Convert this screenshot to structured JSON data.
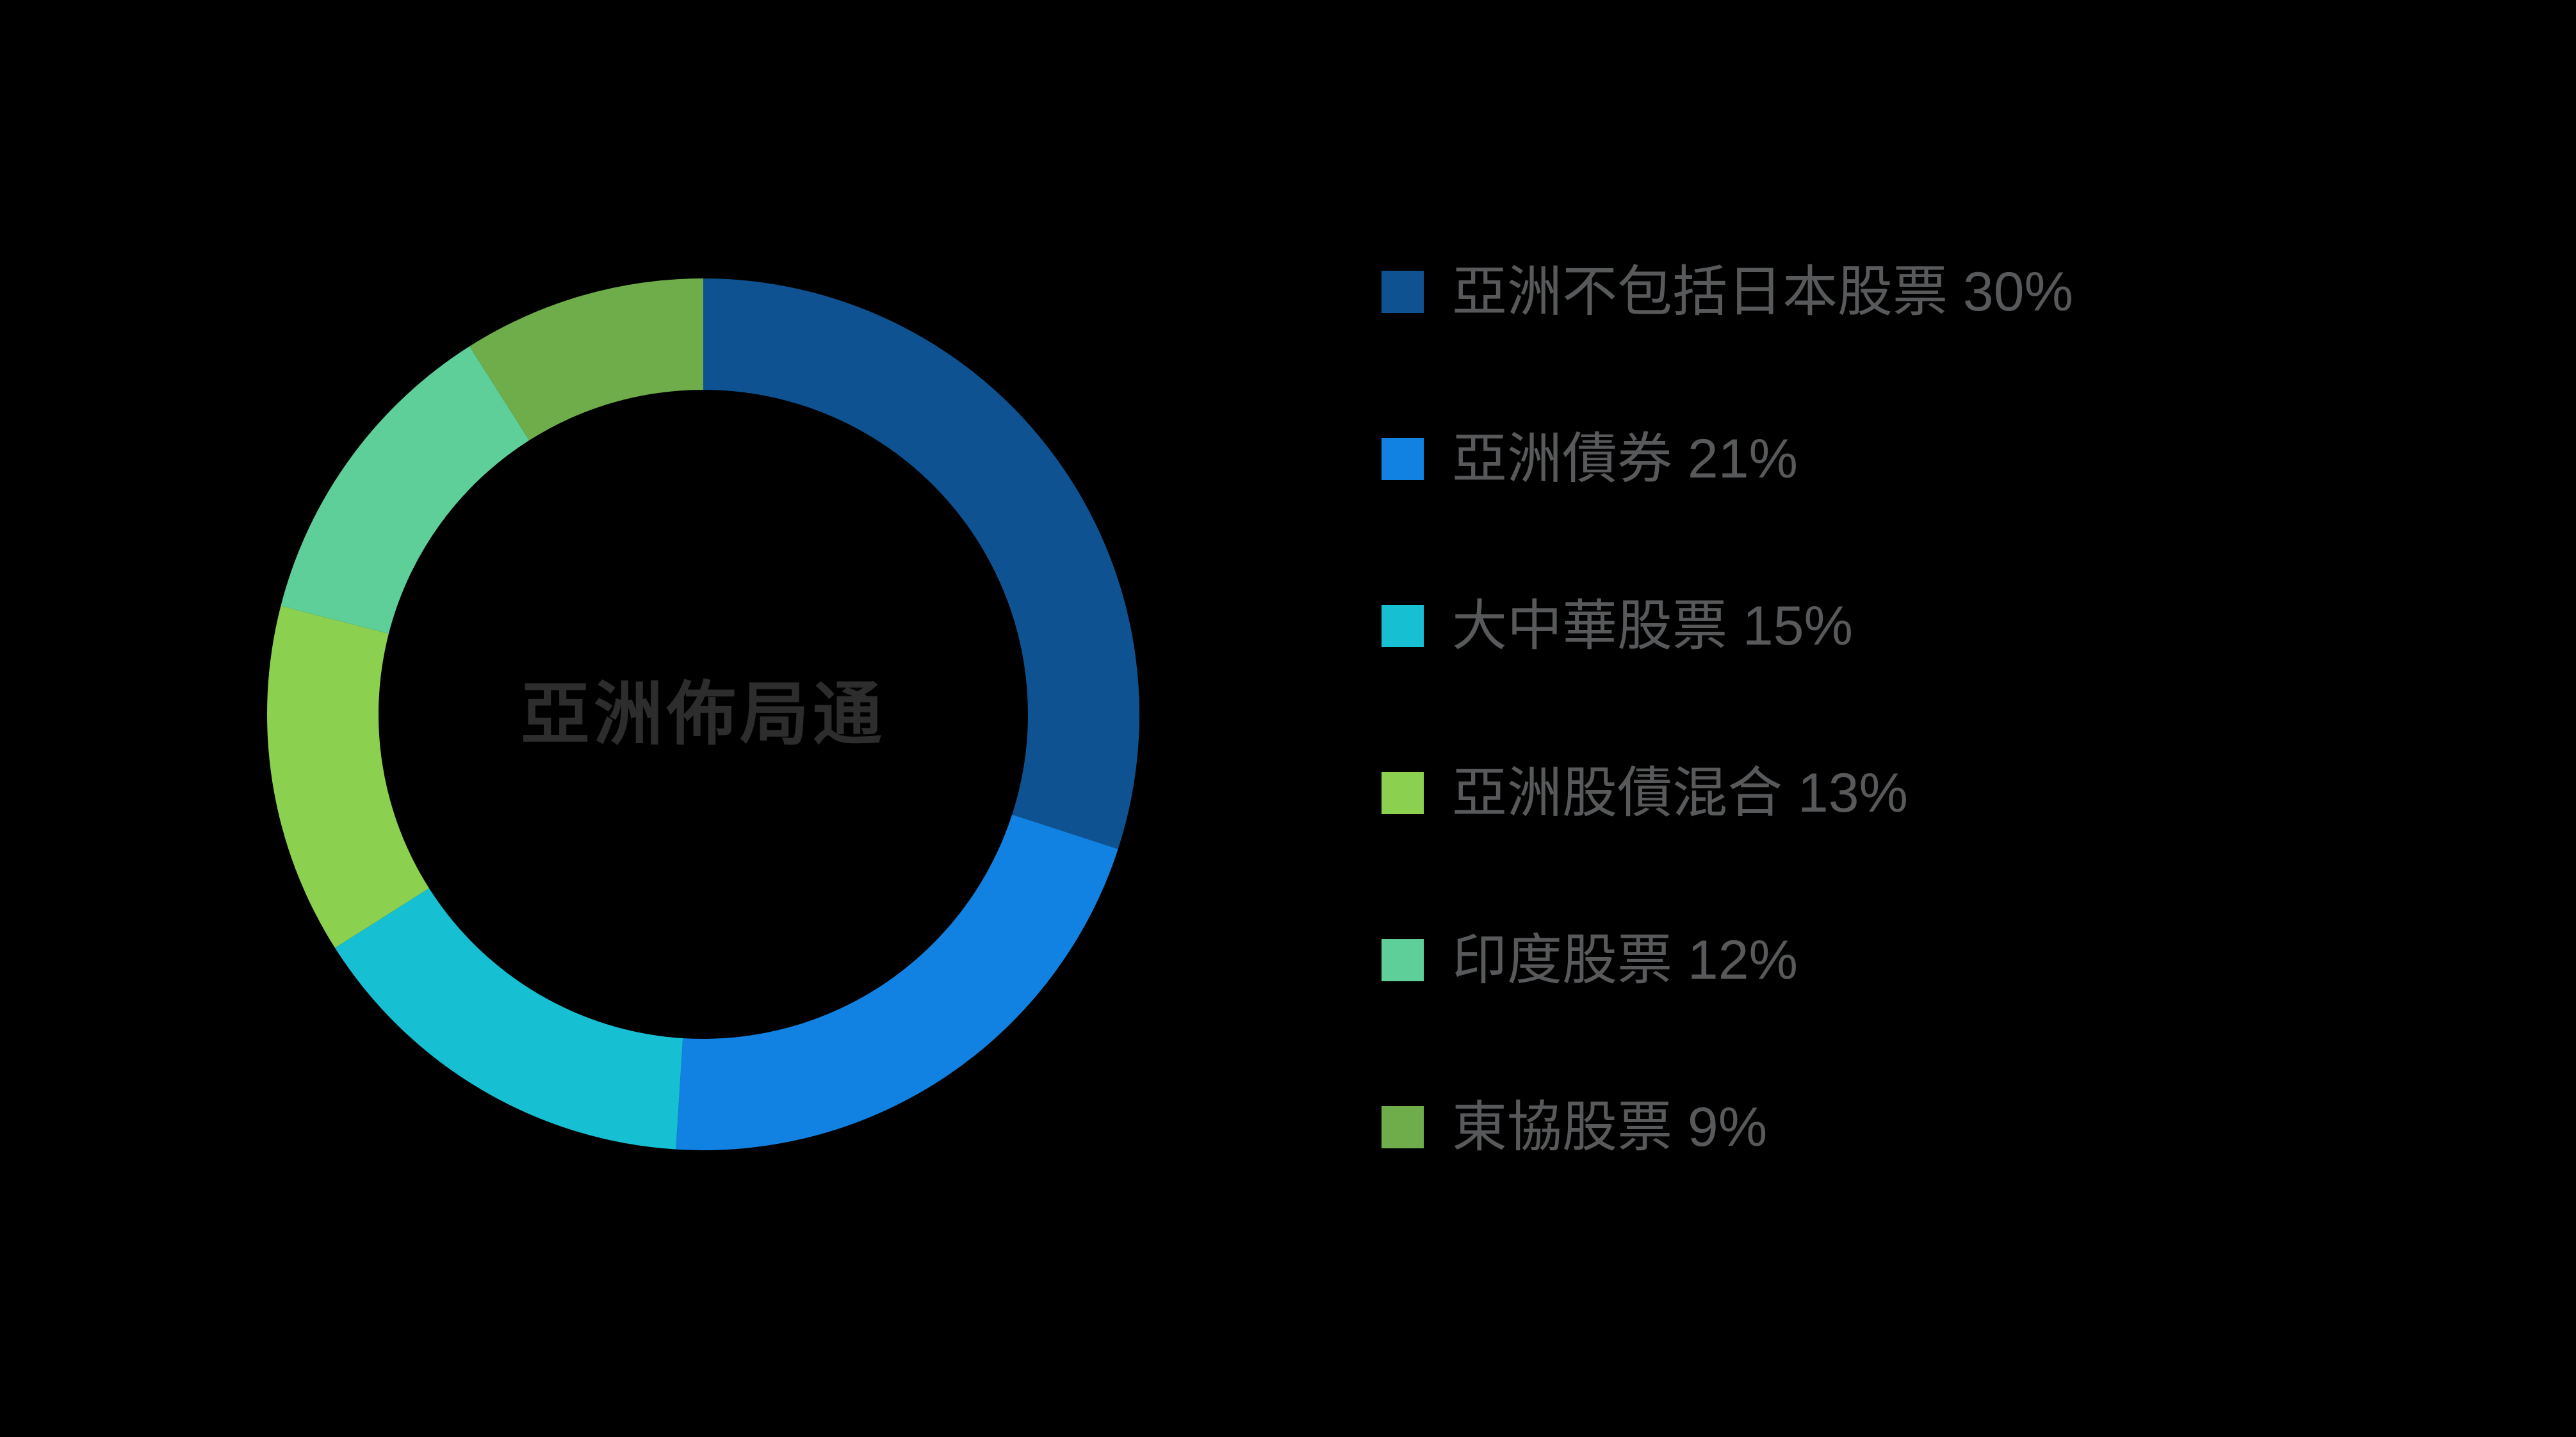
{
  "background_color": "#000000",
  "chart_data": {
    "type": "pie",
    "subtype": "donut",
    "title": "亞洲佈局通",
    "title_color": "#2D2D2D",
    "legend_position": "right",
    "legend_text_color": "#58595B",
    "start_angle_deg": 0,
    "direction": "clockwise",
    "inner_radius_ratio": 0.745,
    "items": [
      {
        "label": "亞洲不包括日本股票",
        "value_pct": 30,
        "color": "#0F5291",
        "legend_label": "亞洲不包括日本股票 30%"
      },
      {
        "label": "亞洲債券",
        "value_pct": 21,
        "color": "#1182E2",
        "legend_label": "亞洲債券 21%"
      },
      {
        "label": "大中華股票",
        "value_pct": 15,
        "color": "#17BFD3",
        "legend_label": "大中華股票 15%"
      },
      {
        "label": "亞洲股債混合",
        "value_pct": 13,
        "color": "#8CD04F",
        "legend_label": "亞洲股債混合 13%"
      },
      {
        "label": "印度股票",
        "value_pct": 12,
        "color": "#5ECF99",
        "legend_label": "印度股票 12%"
      },
      {
        "label": "東協股票",
        "value_pct": 9,
        "color": "#6FAD4A",
        "legend_label": "東協股票 9%"
      }
    ]
  }
}
